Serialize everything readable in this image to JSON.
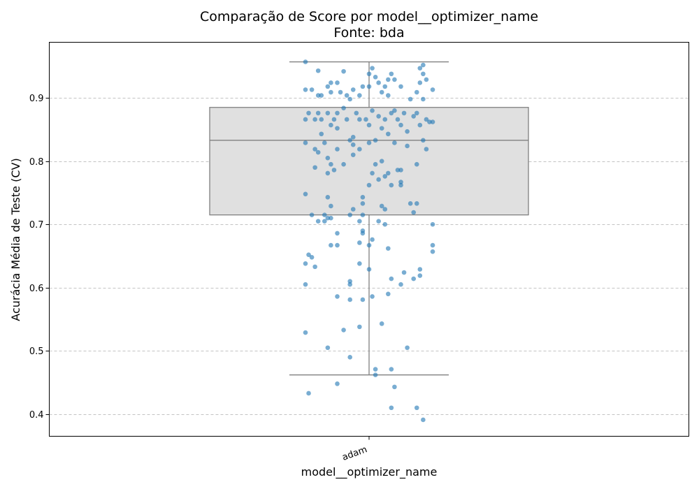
{
  "chart_data": {
    "type": "box",
    "title": "Comparação de Score por model__optimizer_name",
    "subtitle": "Fonte: bda",
    "xlabel": "model__optimizer_name",
    "ylabel": "Acurácia Média de Teste (CV)",
    "categories": [
      "adam"
    ],
    "ylim": [
      0.365,
      0.988
    ],
    "yticks": [
      0.4,
      0.5,
      0.6,
      0.7,
      0.8,
      0.9
    ],
    "ytick_labels": [
      "0.4",
      "0.5",
      "0.6",
      "0.7",
      "0.8",
      "0.9"
    ],
    "grid": "horizontal dashed",
    "box": {
      "category": "adam",
      "whisker_low": 0.462,
      "q1": 0.715,
      "median": 0.833,
      "q3": 0.885,
      "whisker_high": 0.957,
      "fill_color": "#e0e0e0",
      "line_color": "#808080"
    },
    "points_color": "#1f77b4",
    "points": [
      {
        "x": -0.2,
        "y": 0.957
      },
      {
        "x": -0.16,
        "y": 0.943
      },
      {
        "x": -0.08,
        "y": 0.942
      },
      {
        "x": 0.0,
        "y": 0.938
      },
      {
        "x": 0.01,
        "y": 0.947
      },
      {
        "x": 0.07,
        "y": 0.938
      },
      {
        "x": 0.16,
        "y": 0.947
      },
      {
        "x": 0.17,
        "y": 0.938
      },
      {
        "x": 0.17,
        "y": 0.952
      },
      {
        "x": -0.2,
        "y": 0.913
      },
      {
        "x": -0.18,
        "y": 0.913
      },
      {
        "x": -0.16,
        "y": 0.904
      },
      {
        "x": -0.15,
        "y": 0.904
      },
      {
        "x": -0.13,
        "y": 0.918
      },
      {
        "x": -0.12,
        "y": 0.924
      },
      {
        "x": -0.12,
        "y": 0.909
      },
      {
        "x": -0.1,
        "y": 0.924
      },
      {
        "x": -0.09,
        "y": 0.909
      },
      {
        "x": -0.07,
        "y": 0.904
      },
      {
        "x": -0.06,
        "y": 0.898
      },
      {
        "x": -0.05,
        "y": 0.913
      },
      {
        "x": -0.03,
        "y": 0.904
      },
      {
        "x": -0.02,
        "y": 0.918
      },
      {
        "x": 0.0,
        "y": 0.918
      },
      {
        "x": 0.02,
        "y": 0.933
      },
      {
        "x": 0.03,
        "y": 0.924
      },
      {
        "x": 0.04,
        "y": 0.909
      },
      {
        "x": 0.05,
        "y": 0.918
      },
      {
        "x": 0.06,
        "y": 0.929
      },
      {
        "x": 0.06,
        "y": 0.904
      },
      {
        "x": 0.08,
        "y": 0.929
      },
      {
        "x": 0.1,
        "y": 0.918
      },
      {
        "x": 0.13,
        "y": 0.898
      },
      {
        "x": 0.15,
        "y": 0.909
      },
      {
        "x": 0.16,
        "y": 0.924
      },
      {
        "x": 0.17,
        "y": 0.898
      },
      {
        "x": 0.18,
        "y": 0.929
      },
      {
        "x": 0.2,
        "y": 0.913
      },
      {
        "x": -0.2,
        "y": 0.866
      },
      {
        "x": -0.19,
        "y": 0.876
      },
      {
        "x": -0.17,
        "y": 0.866
      },
      {
        "x": -0.16,
        "y": 0.876
      },
      {
        "x": -0.15,
        "y": 0.866
      },
      {
        "x": -0.15,
        "y": 0.843
      },
      {
        "x": -0.13,
        "y": 0.876
      },
      {
        "x": -0.12,
        "y": 0.857
      },
      {
        "x": -0.11,
        "y": 0.866
      },
      {
        "x": -0.1,
        "y": 0.876
      },
      {
        "x": -0.1,
        "y": 0.852
      },
      {
        "x": -0.08,
        "y": 0.884
      },
      {
        "x": -0.07,
        "y": 0.866
      },
      {
        "x": -0.05,
        "y": 0.838
      },
      {
        "x": -0.05,
        "y": 0.826
      },
      {
        "x": -0.04,
        "y": 0.876
      },
      {
        "x": -0.03,
        "y": 0.866
      },
      {
        "x": -0.01,
        "y": 0.866
      },
      {
        "x": 0.0,
        "y": 0.857
      },
      {
        "x": 0.01,
        "y": 0.88
      },
      {
        "x": 0.02,
        "y": 0.833
      },
      {
        "x": 0.03,
        "y": 0.871
      },
      {
        "x": 0.04,
        "y": 0.852
      },
      {
        "x": 0.05,
        "y": 0.866
      },
      {
        "x": 0.06,
        "y": 0.843
      },
      {
        "x": 0.07,
        "y": 0.876
      },
      {
        "x": 0.08,
        "y": 0.88
      },
      {
        "x": 0.09,
        "y": 0.866
      },
      {
        "x": 0.1,
        "y": 0.857
      },
      {
        "x": 0.11,
        "y": 0.876
      },
      {
        "x": 0.12,
        "y": 0.847
      },
      {
        "x": 0.14,
        "y": 0.871
      },
      {
        "x": 0.15,
        "y": 0.876
      },
      {
        "x": 0.16,
        "y": 0.857
      },
      {
        "x": 0.17,
        "y": 0.833
      },
      {
        "x": 0.18,
        "y": 0.866
      },
      {
        "x": 0.19,
        "y": 0.862
      },
      {
        "x": 0.2,
        "y": 0.862
      },
      {
        "x": -0.2,
        "y": 0.829
      },
      {
        "x": -0.17,
        "y": 0.819
      },
      {
        "x": -0.16,
        "y": 0.814
      },
      {
        "x": -0.14,
        "y": 0.829
      },
      {
        "x": -0.13,
        "y": 0.805
      },
      {
        "x": -0.12,
        "y": 0.795
      },
      {
        "x": -0.1,
        "y": 0.819
      },
      {
        "x": -0.08,
        "y": 0.795
      },
      {
        "x": -0.06,
        "y": 0.833
      },
      {
        "x": -0.05,
        "y": 0.81
      },
      {
        "x": -0.03,
        "y": 0.819
      },
      {
        "x": 0.0,
        "y": 0.829
      },
      {
        "x": 0.02,
        "y": 0.795
      },
      {
        "x": 0.04,
        "y": 0.8
      },
      {
        "x": 0.06,
        "y": 0.781
      },
      {
        "x": 0.08,
        "y": 0.829
      },
      {
        "x": 0.1,
        "y": 0.786
      },
      {
        "x": 0.12,
        "y": 0.824
      },
      {
        "x": 0.15,
        "y": 0.795
      },
      {
        "x": 0.18,
        "y": 0.819
      },
      {
        "x": -0.17,
        "y": 0.79
      },
      {
        "x": -0.13,
        "y": 0.781
      },
      {
        "x": -0.11,
        "y": 0.786
      },
      {
        "x": 0.0,
        "y": 0.762
      },
      {
        "x": 0.01,
        "y": 0.781
      },
      {
        "x": 0.03,
        "y": 0.771
      },
      {
        "x": 0.05,
        "y": 0.776
      },
      {
        "x": 0.07,
        "y": 0.762
      },
      {
        "x": 0.09,
        "y": 0.786
      },
      {
        "x": 0.1,
        "y": 0.762
      },
      {
        "x": 0.1,
        "y": 0.767
      },
      {
        "x": -0.2,
        "y": 0.748
      },
      {
        "x": -0.13,
        "y": 0.743
      },
      {
        "x": -0.02,
        "y": 0.743
      },
      {
        "x": -0.02,
        "y": 0.733
      },
      {
        "x": 0.13,
        "y": 0.733
      },
      {
        "x": 0.15,
        "y": 0.733
      },
      {
        "x": -0.12,
        "y": 0.729
      },
      {
        "x": 0.04,
        "y": 0.729
      },
      {
        "x": 0.05,
        "y": 0.724
      },
      {
        "x": 0.14,
        "y": 0.719
      },
      {
        "x": -0.05,
        "y": 0.724
      },
      {
        "x": -0.06,
        "y": 0.715
      },
      {
        "x": -0.14,
        "y": 0.715
      },
      {
        "x": -0.18,
        "y": 0.715
      },
      {
        "x": -0.16,
        "y": 0.705
      },
      {
        "x": -0.14,
        "y": 0.705
      },
      {
        "x": -0.13,
        "y": 0.71
      },
      {
        "x": -0.12,
        "y": 0.71
      },
      {
        "x": -0.03,
        "y": 0.705
      },
      {
        "x": 0.03,
        "y": 0.705
      },
      {
        "x": 0.05,
        "y": 0.7
      },
      {
        "x": 0.2,
        "y": 0.7
      },
      {
        "x": -0.02,
        "y": 0.715
      },
      {
        "x": -0.1,
        "y": 0.686
      },
      {
        "x": -0.02,
        "y": 0.69
      },
      {
        "x": -0.02,
        "y": 0.686
      },
      {
        "x": 0.01,
        "y": 0.676
      },
      {
        "x": -0.03,
        "y": 0.671
      },
      {
        "x": -0.12,
        "y": 0.667
      },
      {
        "x": -0.1,
        "y": 0.667
      },
      {
        "x": 0.0,
        "y": 0.667
      },
      {
        "x": 0.06,
        "y": 0.662
      },
      {
        "x": 0.2,
        "y": 0.667
      },
      {
        "x": 0.2,
        "y": 0.657
      },
      {
        "x": -0.19,
        "y": 0.652
      },
      {
        "x": -0.18,
        "y": 0.648
      },
      {
        "x": -0.2,
        "y": 0.638
      },
      {
        "x": -0.17,
        "y": 0.633
      },
      {
        "x": -0.03,
        "y": 0.638
      },
      {
        "x": 0.0,
        "y": 0.629
      },
      {
        "x": 0.11,
        "y": 0.624
      },
      {
        "x": 0.16,
        "y": 0.629
      },
      {
        "x": 0.16,
        "y": 0.619
      },
      {
        "x": 0.07,
        "y": 0.614
      },
      {
        "x": 0.14,
        "y": 0.614
      },
      {
        "x": -0.2,
        "y": 0.605
      },
      {
        "x": -0.06,
        "y": 0.605
      },
      {
        "x": -0.06,
        "y": 0.61
      },
      {
        "x": 0.1,
        "y": 0.605
      },
      {
        "x": 0.06,
        "y": 0.59
      },
      {
        "x": -0.1,
        "y": 0.586
      },
      {
        "x": -0.06,
        "y": 0.581
      },
      {
        "x": -0.02,
        "y": 0.581
      },
      {
        "x": 0.01,
        "y": 0.586
      },
      {
        "x": 0.04,
        "y": 0.543
      },
      {
        "x": -0.03,
        "y": 0.538
      },
      {
        "x": -0.08,
        "y": 0.533
      },
      {
        "x": -0.2,
        "y": 0.529
      },
      {
        "x": -0.13,
        "y": 0.505
      },
      {
        "x": 0.12,
        "y": 0.505
      },
      {
        "x": -0.06,
        "y": 0.49
      },
      {
        "x": 0.02,
        "y": 0.471
      },
      {
        "x": 0.07,
        "y": 0.471
      },
      {
        "x": 0.02,
        "y": 0.462
      },
      {
        "x": -0.1,
        "y": 0.448
      },
      {
        "x": 0.08,
        "y": 0.443
      },
      {
        "x": -0.19,
        "y": 0.433
      },
      {
        "x": 0.07,
        "y": 0.41
      },
      {
        "x": 0.15,
        "y": 0.41
      },
      {
        "x": 0.17,
        "y": 0.391
      }
    ]
  }
}
